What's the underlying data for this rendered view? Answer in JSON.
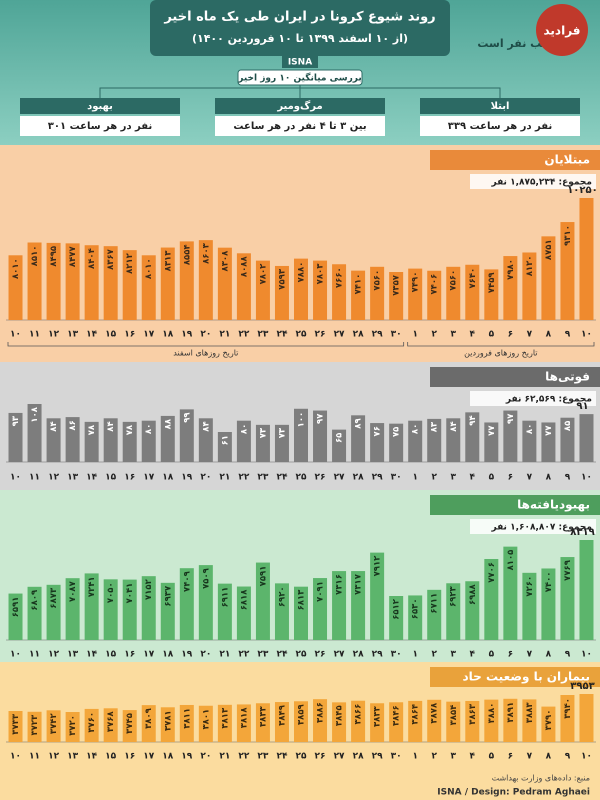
{
  "header": {
    "title": "روند شیوع کرونا در ایران طی یک ماه اخیر",
    "subtitle": "(از ۱۰ اسفند ۱۳۹۹ تا ۱۰ فروردین ۱۴۰۰)",
    "source_badge": "ISNA",
    "side_text": "سب نفر است",
    "logo": "فرادید",
    "summary_title": "بررسی میانگین ۱۰ روز اخیر",
    "summary": [
      {
        "label": "بهبود",
        "value": "۳۰۱ نفر در هر ساعت"
      },
      {
        "label": "مرگ‌ومیر",
        "value": "بین ۳ تا ۴ نفر در هر ساعت"
      },
      {
        "label": "ابتلا",
        "value": "۳۳۹ نفر در هر ساعت"
      }
    ]
  },
  "chart_data": [
    {
      "type": "bar",
      "title": "مبتلایان",
      "total": "مجموع: ۱,۸۷۵,۲۳۴ نفر",
      "color": "#ef8a2e",
      "label_color": "#3a2a1a",
      "x_captions": [
        "تاریخ روزهای اسفند",
        "تاریخ روزهای فروردین"
      ],
      "categories": [
        "۱۰",
        "۱۱",
        "۱۲",
        "۱۳",
        "۱۴",
        "۱۵",
        "۱۶",
        "۱۷",
        "۱۸",
        "۱۹",
        "۲۰",
        "۲۱",
        "۲۲",
        "۲۳",
        "۲۴",
        "۲۵",
        "۲۶",
        "۲۷",
        "۲۸",
        "۲۹",
        "۳۰",
        "۱",
        "۲",
        "۳",
        "۴",
        "۵",
        "۶",
        "۷",
        "۸",
        "۹",
        "۱۰"
      ],
      "values": [
        8010,
        8510,
        8495,
        8477,
        8404,
        8367,
        8212,
        8010,
        8313,
        8554,
        8603,
        8308,
        8088,
        7802,
        7593,
        7880,
        7803,
        7660,
        7410,
        7560,
        7357,
        7490,
        7406,
        7560,
        7640,
        7459,
        7980,
        8120,
        8751,
        9310,
        10250
      ],
      "value_labels": [
        "۸۰۱۰",
        "۸۵۱۰",
        "۸۴۹۵",
        "۸۴۷۷",
        "۸۴۰۴",
        "۸۳۶۷",
        "۸۲۱۲",
        "۸۰۱۰",
        "۸۳۱۳",
        "۸۵۵۴",
        "۸۶۰۳",
        "۸۳۰۸",
        "۸۰۸۸",
        "۷۸۰۲",
        "۷۵۹۳",
        "۷۸۸۰",
        "۷۸۰۳",
        "۷۶۶۰",
        "۷۴۱۰",
        "۷۵۶۰",
        "۷۳۵۷",
        "۷۴۹۰",
        "۷۴۰۶",
        "۷۵۶۰",
        "۷۶۴۰",
        "۷۴۵۹",
        "۷۹۸۰",
        "۸۱۲۰",
        "۸۷۵۱",
        "۹۳۱۰",
        "۱۰۲۵۰"
      ]
    },
    {
      "type": "bar",
      "title": "فوتی‌ها",
      "total": "مجموع: ۶۲,۵۶۹ نفر",
      "color": "#7d7d7d",
      "label_color": "#ffffff",
      "categories": [
        "۱۰",
        "۱۱",
        "۱۲",
        "۱۳",
        "۱۴",
        "۱۵",
        "۱۶",
        "۱۷",
        "۱۸",
        "۱۹",
        "۲۰",
        "۲۱",
        "۲۲",
        "۲۳",
        "۲۴",
        "۲۵",
        "۲۶",
        "۲۷",
        "۲۸",
        "۲۹",
        "۳۰",
        "۱",
        "۲",
        "۳",
        "۴",
        "۵",
        "۶",
        "۷",
        "۸",
        "۹",
        "۱۰"
      ],
      "values": [
        93,
        108,
        84,
        86,
        78,
        84,
        78,
        80,
        88,
        99,
        84,
        61,
        80,
        73,
        73,
        100,
        97,
        65,
        89,
        76,
        75,
        80,
        83,
        84,
        94,
        77,
        97,
        80,
        77,
        85,
        91
      ],
      "value_labels": [
        "۹۳",
        "۱۰۸",
        "۸۴",
        "۸۶",
        "۷۸",
        "۸۴",
        "۷۸",
        "۸۰",
        "۸۸",
        "۹۹",
        "۸۴",
        "۶۱",
        "۸۰",
        "۷۳",
        "۷۳",
        "۱۰۰",
        "۹۷",
        "۶۵",
        "۸۹",
        "۷۶",
        "۷۵",
        "۸۰",
        "۸۳",
        "۸۴",
        "۹۴",
        "۷۷",
        "۹۷",
        "۸۰",
        "۷۷",
        "۸۵",
        "۹۱"
      ]
    },
    {
      "type": "bar",
      "title": "بهبودیافته‌ها",
      "total": "مجموع: ۱,۶۰۸,۸۰۷ نفر",
      "color": "#5cb56c",
      "label_color": "#17361d",
      "categories": [
        "۱۰",
        "۱۱",
        "۱۲",
        "۱۳",
        "۱۴",
        "۱۵",
        "۱۶",
        "۱۷",
        "۱۸",
        "۱۹",
        "۲۰",
        "۲۱",
        "۲۲",
        "۲۳",
        "۲۴",
        "۲۵",
        "۲۶",
        "۲۷",
        "۲۸",
        "۲۹",
        "۳۰",
        "۱",
        "۲",
        "۳",
        "۴",
        "۵",
        "۶",
        "۷",
        "۸",
        "۹",
        "۱۰"
      ],
      "values": [
        6591,
        6809,
        6873,
        7087,
        7241,
        7050,
        7041,
        7152,
        6937,
        7409,
        7509,
        6911,
        6818,
        7591,
        6920,
        6813,
        7091,
        7316,
        7317,
        7912,
        6512,
        6530,
        6711,
        6923,
        6988,
        7706,
        8105,
        7260,
        7400,
        7769,
        8319
      ],
      "value_labels": [
        "۶۵۹۱",
        "۶۸۰۹",
        "۶۸۷۳",
        "۷۰۸۷",
        "۷۲۴۱",
        "۷۰۵۰",
        "۷۰۴۱",
        "۷۱۵۲",
        "۶۹۳۷",
        "۷۴۰۹",
        "۷۵۰۹",
        "۶۹۱۱",
        "۶۸۱۸",
        "۷۵۹۱",
        "۶۹۲۰",
        "۶۸۱۳",
        "۷۰۹۱",
        "۷۳۱۶",
        "۷۳۱۷",
        "۷۹۱۲",
        "۶۵۱۲",
        "۶۵۳۰",
        "۶۷۱۱",
        "۶۹۲۳",
        "۶۹۸۸",
        "۷۷۰۶",
        "۸۱۰۵",
        "۷۲۶۰",
        "۷۴۰۰",
        "۷۷۶۹",
        "۸۳۱۹"
      ]
    },
    {
      "type": "bar",
      "title": "بیماران با وضعیت حاد",
      "color": "#f3a63a",
      "label_color": "#3a2a10",
      "categories": [
        "۱۰",
        "۱۱",
        "۱۲",
        "۱۳",
        "۱۴",
        "۱۵",
        "۱۶",
        "۱۷",
        "۱۸",
        "۱۹",
        "۲۰",
        "۲۱",
        "۲۲",
        "۲۳",
        "۲۴",
        "۲۵",
        "۲۶",
        "۲۷",
        "۲۸",
        "۲۹",
        "۳۰",
        "۱",
        "۲",
        "۳",
        "۴",
        "۵",
        "۶",
        "۷",
        "۸",
        "۹",
        "۱۰"
      ],
      "values": [
        3733,
        3723,
        3742,
        3720,
        3760,
        3768,
        3745,
        3809,
        3781,
        3811,
        3801,
        3813,
        3818,
        3833,
        3849,
        3859,
        3886,
        3845,
        3866,
        3833,
        3846,
        3864,
        3878,
        3854,
        3863,
        3880,
        3891,
        3883,
        3790,
        3940,
        3953
      ],
      "value_labels": [
        "۳۷۳۳",
        "۳۷۲۳",
        "۳۷۴۲",
        "۳۷۲۰",
        "۳۷۶۰",
        "۳۷۶۸",
        "۳۷۴۵",
        "۳۸۰۹",
        "۳۷۸۱",
        "۳۸۱۱",
        "۳۸۰۱",
        "۳۸۱۳",
        "۳۸۱۸",
        "۳۸۳۳",
        "۳۸۴۹",
        "۳۸۵۹",
        "۳۸۸۶",
        "۳۸۴۵",
        "۳۸۶۶",
        "۳۸۳۳",
        "۳۸۴۶",
        "۳۸۶۴",
        "۳۸۷۸",
        "۳۸۵۴",
        "۳۸۶۳",
        "۳۸۸۰",
        "۳۸۹۱",
        "۳۸۸۳",
        "۳۷۹۰",
        "۳۹۴۰",
        "۳۹۵۳"
      ]
    }
  ],
  "footer": {
    "source": "منبع: داده‌های وزارت بهداشت",
    "credit": "ISNA / Design: Pedram Aghaei"
  }
}
